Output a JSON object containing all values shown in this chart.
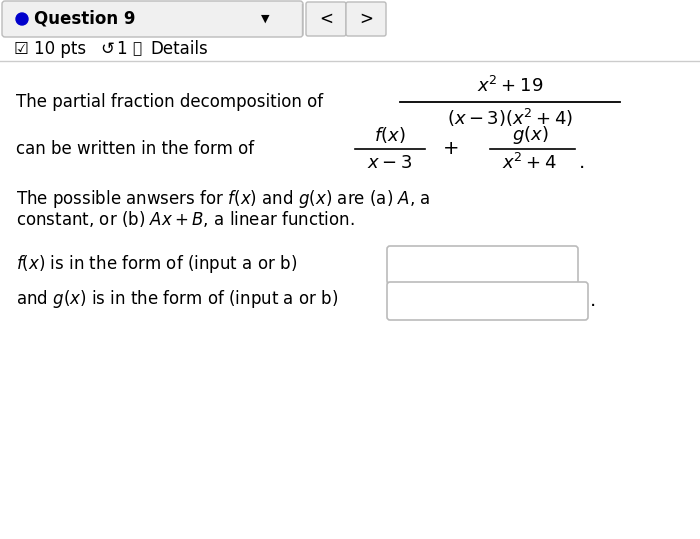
{
  "bg_color": "#ffffff",
  "header_bg": "#f0f0f0",
  "title": "Question 9",
  "dot_color": "#0000cc",
  "text_color": "#000000",
  "border_color": "#bbbbbb",
  "header_border": "#cccccc",
  "para1_prefix": "The partial fraction decomposition of",
  "para2_prefix": "can be written in the form of",
  "para3_line1": "The possible anwsers for $f(x)$ and $g(x)$ are (a) $A$, a",
  "para3_line2": "constant, or (b) $Ax + B$, a linear function.",
  "input1_label": "$f(x)$ is in the form of (input a or b)",
  "input2_label": "and $g(x)$ is in the form of (input a or b)",
  "frac_num": "$x^2 + 19$",
  "frac_den": "$(x - 3)(x^2 + 4)$",
  "form_num1": "$f(x)$",
  "form_den1": "$x - 3$",
  "form_num2": "$g(x)$",
  "form_den2": "$x^2 + 4$"
}
